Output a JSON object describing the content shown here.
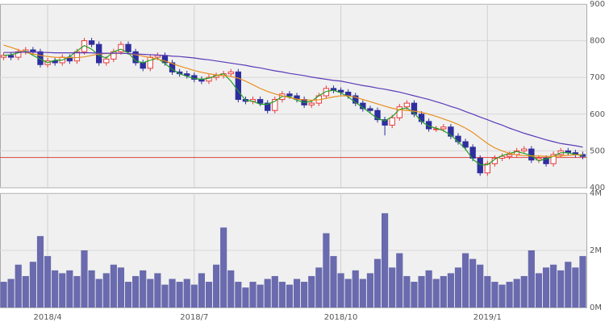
{
  "chart_data": {
    "type": "candlestick",
    "categories": [
      null,
      null,
      null,
      null,
      null,
      null,
      "2018/4",
      null,
      null,
      null,
      null,
      null,
      null,
      null,
      null,
      null,
      null,
      null,
      null,
      null,
      null,
      null,
      null,
      null,
      null,
      null,
      "2018/7",
      null,
      null,
      null,
      null,
      null,
      null,
      null,
      null,
      null,
      null,
      null,
      null,
      null,
      null,
      null,
      null,
      null,
      null,
      null,
      "2018/10",
      null,
      null,
      null,
      null,
      null,
      null,
      null,
      null,
      null,
      null,
      null,
      null,
      null,
      null,
      null,
      null,
      null,
      null,
      null,
      "2019/1",
      null,
      null,
      null,
      null,
      null,
      null,
      null,
      null,
      null,
      null,
      null,
      null,
      null
    ],
    "open": [
      755,
      760,
      755,
      770,
      775,
      770,
      735,
      745,
      740,
      755,
      745,
      770,
      800,
      790,
      740,
      750,
      770,
      790,
      770,
      740,
      725,
      755,
      760,
      740,
      715,
      710,
      705,
      695,
      690,
      700,
      705,
      710,
      715,
      640,
      635,
      640,
      630,
      610,
      640,
      655,
      650,
      640,
      625,
      630,
      650,
      670,
      665,
      660,
      650,
      630,
      615,
      610,
      585,
      570,
      590,
      620,
      630,
      600,
      580,
      560,
      560,
      565,
      540,
      525,
      510,
      480,
      440,
      465,
      480,
      485,
      490,
      500,
      505,
      475,
      480,
      465,
      490,
      500,
      495,
      490
    ],
    "high": [
      768,
      768,
      778,
      783,
      783,
      778,
      753,
      753,
      763,
      763,
      778,
      808,
      808,
      798,
      758,
      778,
      798,
      798,
      778,
      748,
      763,
      768,
      768,
      748,
      723,
      718,
      713,
      703,
      708,
      713,
      718,
      723,
      723,
      648,
      648,
      648,
      638,
      648,
      663,
      663,
      658,
      648,
      638,
      658,
      678,
      678,
      673,
      668,
      658,
      638,
      623,
      618,
      593,
      598,
      628,
      638,
      638,
      608,
      588,
      568,
      573,
      573,
      548,
      533,
      518,
      488,
      473,
      488,
      493,
      498,
      508,
      513,
      513,
      488,
      488,
      498,
      508,
      508,
      503,
      498
    ],
    "low": [
      747,
      747,
      747,
      762,
      762,
      727,
      727,
      732,
      732,
      737,
      737,
      762,
      782,
      732,
      732,
      742,
      762,
      762,
      732,
      717,
      717,
      747,
      732,
      707,
      702,
      697,
      687,
      682,
      682,
      692,
      697,
      702,
      632,
      627,
      627,
      622,
      602,
      602,
      632,
      642,
      632,
      617,
      617,
      622,
      642,
      657,
      652,
      642,
      622,
      607,
      602,
      577,
      542,
      562,
      582,
      612,
      592,
      572,
      552,
      552,
      552,
      532,
      517,
      502,
      472,
      432,
      432,
      457,
      472,
      477,
      482,
      492,
      467,
      467,
      457,
      457,
      482,
      487,
      482,
      477
    ],
    "close": [
      760,
      755,
      770,
      775,
      770,
      735,
      745,
      740,
      755,
      745,
      770,
      800,
      790,
      740,
      750,
      770,
      790,
      770,
      740,
      725,
      755,
      760,
      740,
      715,
      710,
      705,
      695,
      690,
      700,
      705,
      710,
      715,
      640,
      635,
      640,
      630,
      610,
      640,
      655,
      650,
      640,
      625,
      630,
      650,
      670,
      665,
      660,
      650,
      630,
      615,
      610,
      585,
      570,
      590,
      620,
      630,
      600,
      580,
      560,
      560,
      565,
      540,
      525,
      510,
      480,
      440,
      465,
      480,
      485,
      490,
      500,
      505,
      475,
      480,
      465,
      490,
      500,
      495,
      490,
      485
    ],
    "up_color": "#e83a3a",
    "down_color": "#2e2e9e",
    "series": [
      {
        "color": "#22a022",
        "values": [
          760,
          762,
          767,
          772,
          760,
          750,
          740,
          747,
          747,
          757,
          772,
          787,
          777,
          760,
          753,
          770,
          777,
          767,
          745,
          740,
          747,
          752,
          738,
          722,
          710,
          703,
          697,
          695,
          698,
          705,
          710,
          690,
          663,
          638,
          635,
          627,
          627,
          635,
          648,
          648,
          638,
          632,
          635,
          650,
          662,
          665,
          658,
          647,
          632,
          618,
          603,
          588,
          582,
          593,
          613,
          617,
          603,
          580,
          567,
          562,
          555,
          543,
          525,
          505,
          477,
          462,
          462,
          477,
          487,
          493,
          498,
          493,
          487,
          473,
          478,
          485,
          495,
          495,
          490,
          487
        ]
      },
      {
        "color": "#e8901e",
        "values": [
          788,
          782,
          775,
          768,
          764,
          760,
          757,
          755,
          754,
          754,
          754,
          756,
          760,
          764,
          765,
          765,
          766,
          765,
          762,
          758,
          754,
          750,
          745,
          738,
          731,
          725,
          719,
          714,
          710,
          707,
          705,
          703,
          698,
          690,
          680,
          670,
          662,
          655,
          650,
          645,
          641,
          639,
          638,
          639,
          643,
          647,
          650,
          650,
          646,
          640,
          634,
          628,
          622,
          616,
          612,
          610,
          608,
          605,
          600,
          594,
          587,
          580,
          572,
          562,
          550,
          535,
          520,
          508,
          500,
          493,
          489,
          487,
          486,
          486,
          485,
          485,
          486,
          488,
          489,
          490
        ]
      },
      {
        "color": "#5a3ab8",
        "values": [
          768,
          768,
          769,
          769,
          769,
          768,
          768,
          767,
          767,
          767,
          767,
          767,
          767,
          766,
          766,
          766,
          766,
          765,
          764,
          763,
          762,
          761,
          760,
          758,
          757,
          755,
          753,
          750,
          748,
          745,
          742,
          739,
          736,
          733,
          729,
          726,
          722,
          718,
          715,
          711,
          708,
          705,
          701,
          698,
          695,
          692,
          690,
          686,
          682,
          678,
          675,
          671,
          668,
          664,
          660,
          655,
          650,
          645,
          640,
          634,
          628,
          621,
          615,
          607,
          600,
          592,
          585,
          577,
          570,
          562,
          555,
          548,
          542,
          536,
          530,
          525,
          520,
          517,
          514,
          510
        ]
      }
    ],
    "hline": 482,
    "hline_color": "#e04040",
    "ylim": [
      400,
      900
    ],
    "yticks": [
      400,
      500,
      600,
      700,
      800,
      900
    ],
    "grid": true,
    "volume": {
      "color": "#6a6aae",
      "values": [
        900000,
        1000000,
        1500000,
        1100000,
        1600000,
        2500000,
        1800000,
        1300000,
        1200000,
        1300000,
        1100000,
        2000000,
        1300000,
        1000000,
        1200000,
        1500000,
        1400000,
        900000,
        1100000,
        1300000,
        1000000,
        1200000,
        800000,
        1000000,
        900000,
        1000000,
        800000,
        1200000,
        900000,
        1500000,
        2800000,
        1300000,
        900000,
        700000,
        900000,
        800000,
        1000000,
        1100000,
        900000,
        800000,
        1000000,
        900000,
        1100000,
        1400000,
        2600000,
        1800000,
        1200000,
        1000000,
        1300000,
        1000000,
        1200000,
        1700000,
        3300000,
        1400000,
        1900000,
        1100000,
        900000,
        1100000,
        1300000,
        1000000,
        1100000,
        1200000,
        1400000,
        1900000,
        1700000,
        1500000,
        1100000,
        900000,
        800000,
        900000,
        1000000,
        1100000,
        2000000,
        1200000,
        1400000,
        1500000,
        1300000,
        1600000,
        1400000,
        1800000
      ],
      "ylim": [
        0,
        4000000
      ],
      "yticks": [
        {
          "value": 0,
          "label": "0M"
        },
        {
          "value": 2000000,
          "label": "2M"
        },
        {
          "value": 4000000,
          "label": "4M"
        }
      ]
    }
  }
}
